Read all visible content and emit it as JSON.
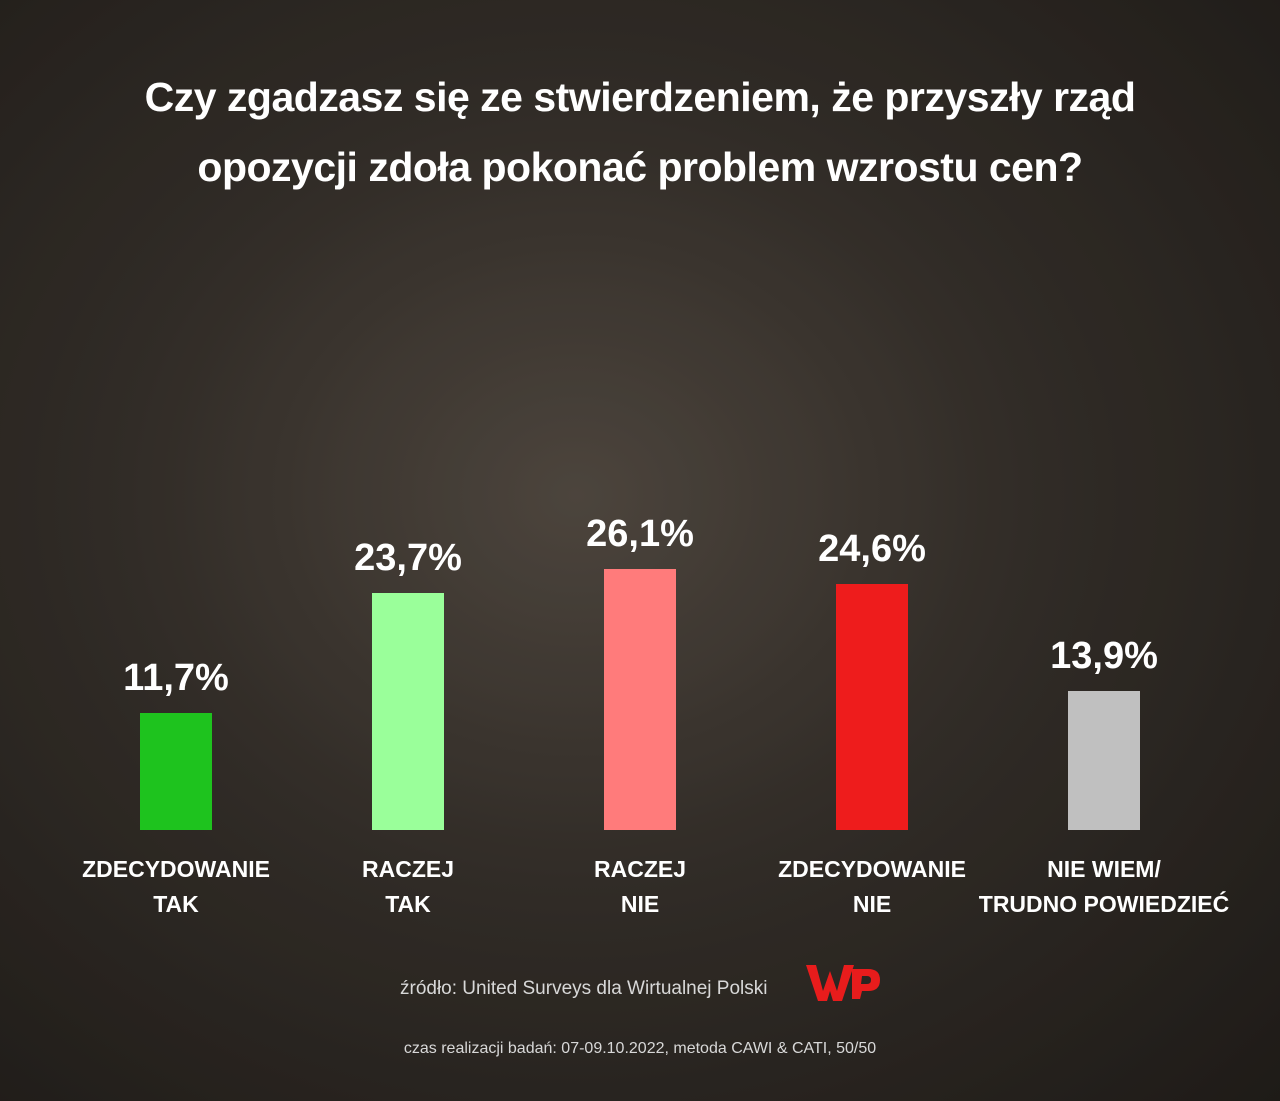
{
  "chart_data": {
    "type": "bar",
    "title": "Czy zgadzasz się ze stwierdzeniem, że przyszły rząd\nopozycji zdoła pokonać problem wzrostu cen?",
    "categories": [
      "ZDECYDOWANIE\nTAK",
      "RACZEJ\nTAK",
      "RACZEJ\nNIE",
      "ZDECYDOWANIE\nNIE",
      "NIE WIEM/\nTRUDNO POWIEDZIEĆ"
    ],
    "values": [
      11.7,
      23.7,
      26.1,
      24.6,
      13.9
    ],
    "value_labels": [
      "11,7%",
      "23,7%",
      "26,1%",
      "24,6%",
      "13,9%"
    ],
    "colors": [
      "#1ec31e",
      "#9aff9a",
      "#ff7b7b",
      "#ee1c1c",
      "#c0c0c0"
    ],
    "source": "źródło: United Surveys dla Wirtualnej Polski",
    "note": "czas realizacji badań: 07-09.10.2022, metoda CAWI & CATI, 50/50"
  }
}
